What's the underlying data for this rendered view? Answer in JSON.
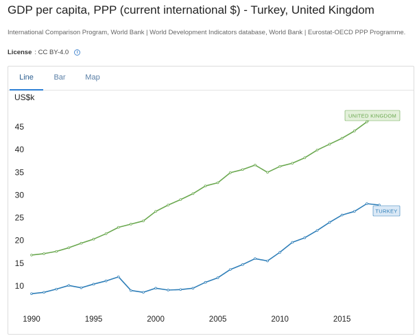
{
  "page": {
    "title": "GDP per capita, PPP (current international $) - Turkey, United Kingdom",
    "source": "International Comparison Program, World Bank | World Development Indicators database, World Bank | Eurostat-OECD PPP Programme.",
    "license_label": "License",
    "license_value": ": CC BY-4.0"
  },
  "tabs": [
    {
      "label": "Line",
      "active": true
    },
    {
      "label": "Bar",
      "active": false
    },
    {
      "label": "Map",
      "active": false
    }
  ],
  "colors": {
    "uk": "#6aa84f",
    "turkey": "#2e7eb8",
    "uk_label_bg": "#e3f0da",
    "turkey_label_bg": "#dbe9f6",
    "tab_active_line": "#2b7fd5"
  },
  "chart_data": {
    "type": "line",
    "ylabel": "US$k",
    "xlabel": "",
    "ylim": [
      5.5,
      49
    ],
    "xlim": [
      1990,
      2018
    ],
    "y_ticks": [
      10,
      15,
      20,
      25,
      30,
      35,
      40,
      45
    ],
    "x_ticks": [
      1990,
      1995,
      2000,
      2005,
      2010,
      2015
    ],
    "grid": false,
    "x": [
      1990,
      1991,
      1992,
      1993,
      1994,
      1995,
      1996,
      1997,
      1998,
      1999,
      2000,
      2001,
      2002,
      2003,
      2004,
      2005,
      2006,
      2007,
      2008,
      2009,
      2010,
      2011,
      2012,
      2013,
      2014,
      2015,
      2016,
      2017,
      2018
    ],
    "series": [
      {
        "name": "United Kingdom",
        "label": "UNITED KINGDOM",
        "values": [
          16.8,
          17.1,
          17.6,
          18.4,
          19.4,
          20.3,
          21.5,
          22.9,
          23.6,
          24.3,
          26.4,
          27.8,
          29.0,
          30.3,
          32.0,
          32.7,
          34.9,
          35.6,
          36.6,
          35.0,
          36.3,
          37.0,
          38.2,
          39.9,
          41.2,
          42.5,
          44.1,
          46.1,
          48.0
        ]
      },
      {
        "name": "Turkey",
        "label": "TURKEY",
        "values": [
          8.3,
          8.6,
          9.3,
          10.1,
          9.6,
          10.4,
          11.1,
          12.0,
          9.0,
          8.6,
          9.5,
          9.1,
          9.2,
          9.5,
          10.8,
          11.8,
          13.6,
          14.7,
          16.0,
          15.5,
          17.4,
          19.6,
          20.6,
          22.2,
          24.0,
          25.6,
          26.4,
          28.1,
          27.8
        ]
      }
    ]
  }
}
